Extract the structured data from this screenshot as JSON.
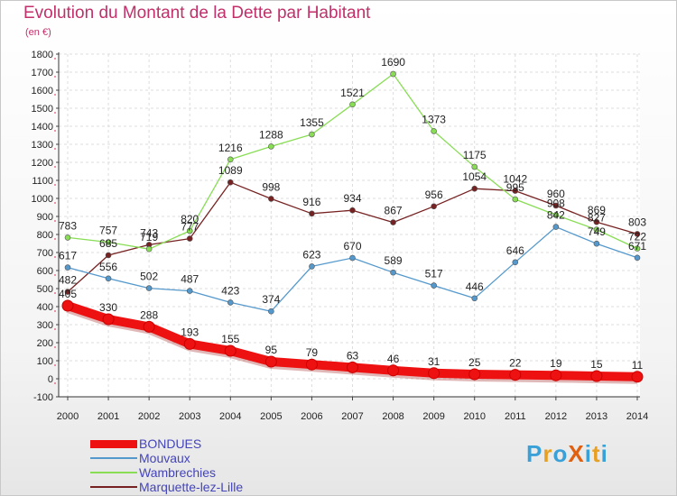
{
  "title": "Evolution du Montant de la Dette par Habitant",
  "subtitle": "(en €)",
  "logo": {
    "text": "ProXiti",
    "colors": [
      "#3aa0d8",
      "#e8a020",
      "#3aa0d8",
      "#e06010",
      "#3aa0d8",
      "#e8a020",
      "#3aa0d8"
    ]
  },
  "chart_data": {
    "type": "line",
    "title": "Evolution du Montant de la Dette par Habitant",
    "ylabel": "(en €)",
    "xlabel": "",
    "x": [
      2000,
      2001,
      2002,
      2003,
      2004,
      2005,
      2006,
      2007,
      2008,
      2009,
      2010,
      2011,
      2012,
      2013,
      2014
    ],
    "ylim": [
      -100,
      1800
    ],
    "yticks": [
      -100,
      0,
      100,
      200,
      300,
      400,
      500,
      600,
      700,
      800,
      900,
      1000,
      1100,
      1200,
      1300,
      1400,
      1500,
      1600,
      1700,
      1800
    ],
    "grid": true,
    "legend_position": "bottom-left",
    "series": [
      {
        "name": "BONDUES",
        "color": "#ee1111",
        "values": [
          405,
          330,
          288,
          193,
          155,
          95,
          79,
          63,
          46,
          31,
          25,
          22,
          19,
          15,
          11
        ]
      },
      {
        "name": "Mouvaux",
        "color": "#5599cc",
        "values": [
          617,
          556,
          502,
          487,
          423,
          374,
          623,
          670,
          589,
          517,
          446,
          646,
          842,
          749,
          671
        ]
      },
      {
        "name": "Wambrechies",
        "color": "#88dd55",
        "values": [
          783,
          757,
          719,
          820,
          1216,
          1288,
          1355,
          1521,
          1690,
          1373,
          1175,
          995,
          908,
          827,
          722
        ]
      },
      {
        "name": "Marquette-lez-Lille",
        "color": "#772222",
        "values": [
          482,
          685,
          743,
          777,
          1089,
          998,
          916,
          934,
          867,
          956,
          1054,
          1042,
          960,
          869,
          803
        ]
      }
    ]
  }
}
